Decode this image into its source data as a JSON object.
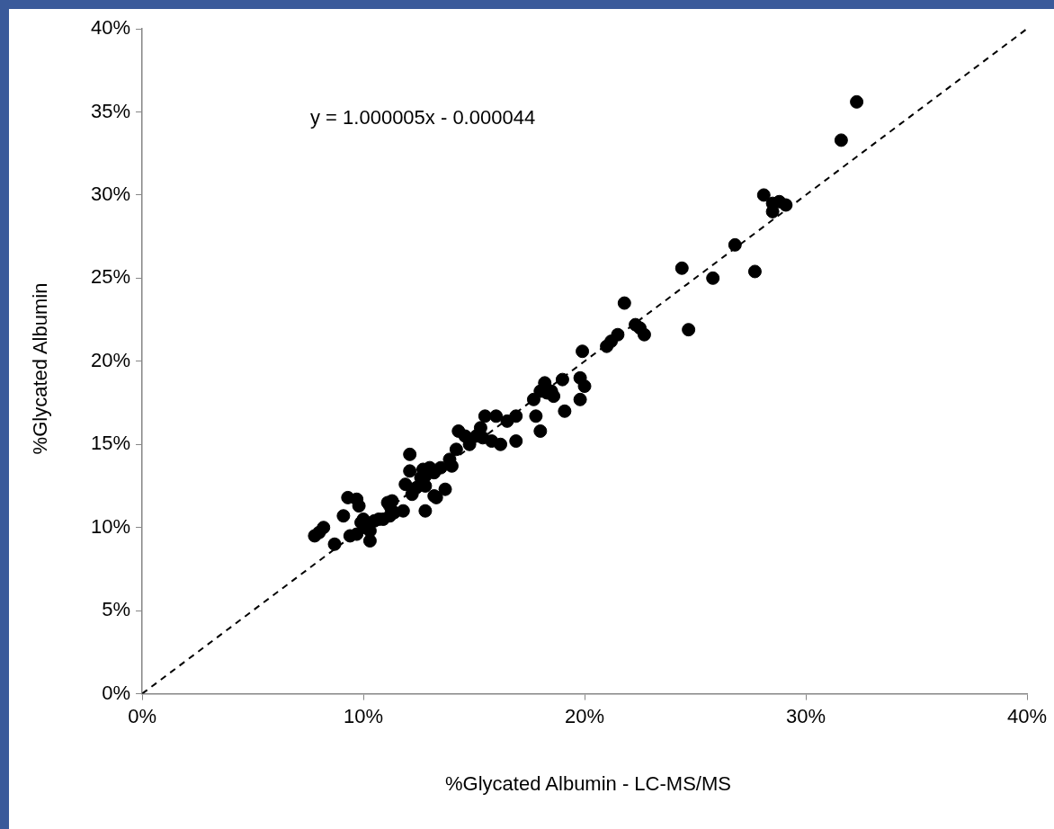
{
  "chart_data": {
    "type": "scatter",
    "xlabel": "%Glycated Albumin - LC-MS/MS",
    "ylabel": "%Glycated Albumin",
    "annotations": [
      "y = 1.000005x - 0.000044"
    ],
    "xlim": [
      0,
      40
    ],
    "ylim": [
      0,
      40
    ],
    "xticks": [
      {
        "value": 0,
        "label": "0%"
      },
      {
        "value": 10,
        "label": "10%"
      },
      {
        "value": 20,
        "label": "20%"
      },
      {
        "value": 30,
        "label": "30%"
      },
      {
        "value": 40,
        "label": "40%"
      }
    ],
    "yticks": [
      {
        "value": 0,
        "label": "0%"
      },
      {
        "value": 5,
        "label": "5%"
      },
      {
        "value": 10,
        "label": "10%"
      },
      {
        "value": 15,
        "label": "15%"
      },
      {
        "value": 20,
        "label": "20%"
      },
      {
        "value": 25,
        "label": "25%"
      },
      {
        "value": 30,
        "label": "30%"
      },
      {
        "value": 35,
        "label": "35%"
      },
      {
        "value": 40,
        "label": "40%"
      }
    ],
    "grid": false,
    "legend": false,
    "series": [
      {
        "marker": "circle",
        "color": "#000000",
        "x": [
          7.8,
          8.0,
          8.2,
          8.7,
          9.1,
          9.3,
          9.7,
          9.4,
          9.7,
          9.8,
          9.9,
          10.0,
          10.1,
          10.3,
          10.3,
          10.5,
          10.7,
          10.9,
          11.1,
          11.2,
          11.2,
          11.3,
          11.4,
          11.8,
          11.9,
          12.1,
          12.1,
          12.2,
          12.4,
          12.6,
          12.7,
          12.8,
          12.8,
          13.0,
          13.2,
          13.3,
          12.8,
          13.2,
          13.7,
          13.5,
          13.9,
          14.0,
          14.2,
          14.3,
          14.6,
          14.8,
          15.1,
          15.3,
          15.4,
          15.5,
          15.8,
          16.0,
          16.2,
          16.5,
          16.9,
          16.9,
          17.7,
          17.8,
          18.0,
          18.0,
          18.2,
          18.3,
          18.5,
          18.6,
          19.0,
          19.1,
          19.8,
          19.8,
          19.9,
          20.0,
          21.0,
          21.2,
          21.5,
          21.8,
          22.3,
          22.5,
          22.7,
          24.4,
          24.7,
          25.8,
          26.8,
          27.7,
          28.1,
          28.5,
          28.5,
          28.8,
          29.1,
          31.6,
          32.3
        ],
        "values": [
          9.5,
          9.7,
          10.0,
          9.0,
          10.7,
          11.8,
          11.7,
          9.5,
          9.6,
          11.3,
          10.3,
          10.5,
          10.0,
          9.2,
          9.8,
          10.4,
          10.5,
          10.5,
          11.5,
          10.7,
          11.3,
          11.6,
          10.9,
          11.0,
          12.6,
          13.4,
          14.4,
          12.0,
          12.4,
          13.0,
          13.5,
          12.5,
          13.1,
          13.6,
          13.3,
          11.8,
          11.0,
          11.9,
          12.3,
          13.6,
          14.1,
          13.7,
          14.7,
          15.8,
          15.5,
          15.0,
          15.5,
          16.0,
          15.4,
          16.7,
          15.2,
          16.7,
          15.0,
          16.4,
          16.7,
          15.2,
          17.7,
          16.7,
          15.8,
          18.2,
          18.7,
          18.1,
          18.2,
          17.9,
          18.9,
          17.0,
          19.0,
          17.7,
          20.6,
          18.5,
          20.9,
          21.2,
          21.6,
          23.5,
          22.2,
          22.0,
          21.6,
          25.6,
          21.9,
          25.0,
          27.0,
          25.4,
          30.0,
          29.0,
          29.5,
          29.6,
          29.4,
          33.3,
          35.6
        ]
      },
      {
        "type": "line",
        "color": "#000000",
        "line_style": "dashed",
        "x": [
          0,
          40
        ],
        "values": [
          0,
          40
        ]
      }
    ]
  }
}
